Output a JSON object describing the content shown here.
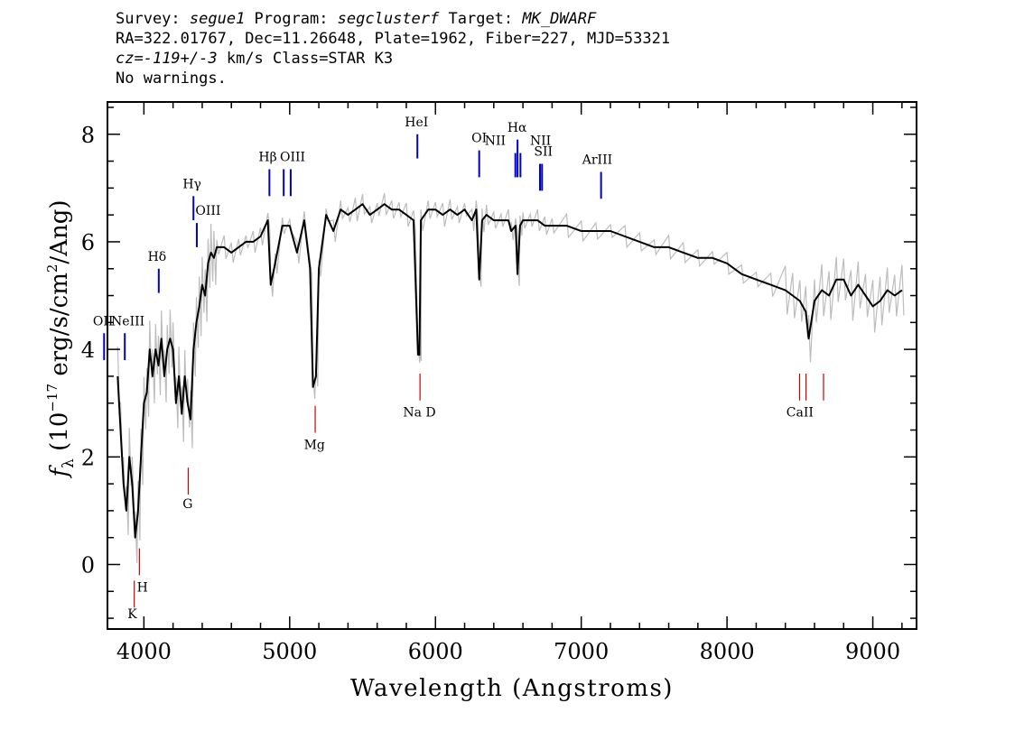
{
  "header": {
    "line1": {
      "survey_label": "Survey: ",
      "survey": "segue1",
      "program_label": " Program: ",
      "program": "segclusterf",
      "target_label": " Target: ",
      "target": "MK_DWARF"
    },
    "line2": "RA=322.01767, Dec=11.26648, Plate=1962, Fiber=227, MJD=53321",
    "line3": {
      "cz_label": "cz=",
      "cz": "-119+/-3",
      "rest": " km/s Class=STAR K3"
    },
    "line4": "No warnings."
  },
  "chart_data": {
    "type": "line",
    "title": "",
    "xlabel": "Wavelength (Angstroms)",
    "ylabel": "f_λ (10^-17 erg/s/cm^2/Ang)",
    "ylabel_parts": {
      "f": "f",
      "lambda": "λ",
      "open": " (10",
      "exp": "−17",
      "mid": " erg/s/cm",
      "sq": "2",
      "close": "/Ang)"
    },
    "xlim": [
      3750,
      9300
    ],
    "ylim": [
      -1.2,
      8.6
    ],
    "xticks": [
      4000,
      5000,
      6000,
      7000,
      8000,
      9000
    ],
    "xtick_labels": [
      "4000",
      "5000",
      "6000",
      "7000",
      "8000",
      "9000"
    ],
    "yticks": [
      0,
      2,
      4,
      6,
      8
    ],
    "ytick_labels": [
      "0",
      "2",
      "4",
      "6",
      "8"
    ],
    "grid": false,
    "series": [
      {
        "role": "flux",
        "color": "#000000",
        "x": [
          3820,
          3840,
          3860,
          3880,
          3900,
          3920,
          3940,
          3960,
          3980,
          4000,
          4020,
          4040,
          4060,
          4080,
          4100,
          4120,
          4140,
          4160,
          4180,
          4200,
          4220,
          4240,
          4260,
          4280,
          4300,
          4320,
          4340,
          4360,
          4380,
          4400,
          4420,
          4440,
          4460,
          4480,
          4500,
          4550,
          4600,
          4650,
          4700,
          4750,
          4800,
          4850,
          4870,
          4900,
          4950,
          5000,
          5050,
          5100,
          5140,
          5160,
          5180,
          5200,
          5250,
          5300,
          5350,
          5400,
          5450,
          5500,
          5550,
          5600,
          5650,
          5700,
          5750,
          5800,
          5850,
          5880,
          5890,
          5900,
          5950,
          6000,
          6050,
          6100,
          6150,
          6200,
          6250,
          6280,
          6300,
          6320,
          6350,
          6400,
          6450,
          6500,
          6520,
          6550,
          6563,
          6580,
          6600,
          6650,
          6700,
          6750,
          6800,
          6900,
          7000,
          7100,
          7200,
          7300,
          7400,
          7500,
          7600,
          7700,
          7800,
          7900,
          8000,
          8100,
          8200,
          8300,
          8400,
          8450,
          8500,
          8540,
          8560,
          8600,
          8650,
          8700,
          8750,
          8800,
          8850,
          8900,
          8950,
          9000,
          9050,
          9100,
          9150,
          9200
        ],
        "y": [
          3.5,
          2.5,
          1.5,
          1.0,
          2.0,
          1.5,
          0.5,
          1.0,
          2.0,
          3.0,
          3.2,
          4.0,
          3.5,
          4.0,
          3.7,
          4.2,
          3.5,
          4.0,
          4.2,
          4.0,
          3.0,
          3.5,
          2.8,
          3.5,
          3.0,
          2.7,
          4.0,
          4.5,
          4.8,
          5.2,
          5.0,
          5.6,
          5.8,
          5.7,
          5.9,
          5.9,
          5.8,
          5.9,
          6.0,
          6.0,
          6.1,
          6.4,
          5.2,
          5.6,
          6.3,
          6.3,
          5.8,
          6.4,
          5.5,
          3.3,
          3.5,
          5.5,
          6.5,
          6.2,
          6.6,
          6.5,
          6.6,
          6.7,
          6.5,
          6.6,
          6.7,
          6.6,
          6.6,
          6.5,
          6.4,
          3.9,
          3.9,
          6.4,
          6.6,
          6.6,
          6.5,
          6.6,
          6.5,
          6.6,
          6.4,
          6.6,
          5.3,
          6.4,
          6.5,
          6.4,
          6.4,
          6.4,
          6.2,
          6.3,
          5.4,
          6.3,
          6.4,
          6.4,
          6.4,
          6.3,
          6.3,
          6.3,
          6.2,
          6.2,
          6.2,
          6.1,
          6.0,
          5.9,
          5.9,
          5.8,
          5.7,
          5.7,
          5.6,
          5.4,
          5.3,
          5.2,
          5.1,
          5.0,
          4.9,
          4.7,
          4.2,
          4.9,
          5.1,
          5.0,
          5.3,
          5.3,
          5.0,
          5.2,
          5.0,
          4.8,
          4.9,
          5.1,
          5.0,
          5.1
        ]
      }
    ],
    "line_markers": {
      "emission_color": "#0000cc",
      "absorption_color": "#cc0000",
      "emission": [
        {
          "label": "OII",
          "wavelength": 3727,
          "y_top": 4.3,
          "y_bottom": 3.8
        },
        {
          "label": "NeIII",
          "wavelength": 3869,
          "y_top": 4.3,
          "y_bottom": 3.8
        },
        {
          "label": "Hδ",
          "wavelength": 4102,
          "y_top": 5.5,
          "y_bottom": 5.05
        },
        {
          "label": "Hγ",
          "wavelength": 4340,
          "y_top": 6.85,
          "y_bottom": 6.4
        },
        {
          "label": "OIII",
          "wavelength": 4363,
          "y_top": 6.35,
          "y_bottom": 5.9
        },
        {
          "label": "Hβ",
          "wavelength": 4861,
          "y_top": 7.35,
          "y_bottom": 6.85
        },
        {
          "label": "OIII",
          "wavelength": 4959,
          "y_top": 7.35,
          "y_bottom": 6.85
        },
        {
          "label": "OIII",
          "wavelength": 5007,
          "y_top": 7.35,
          "y_bottom": 6.85
        },
        {
          "label": "HeI",
          "wavelength": 5876,
          "y_top": 8.0,
          "y_bottom": 7.55
        },
        {
          "label": "OI",
          "wavelength": 6300,
          "y_top": 7.7,
          "y_bottom": 7.2
        },
        {
          "label": "NII",
          "wavelength": 6548,
          "y_top": 7.65,
          "y_bottom": 7.2
        },
        {
          "label": "Hα",
          "wavelength": 6563,
          "y_top": 7.9,
          "y_bottom": 7.2
        },
        {
          "label": "NII",
          "wavelength": 6583,
          "y_top": 7.65,
          "y_bottom": 7.2
        },
        {
          "label": "SII",
          "wavelength": 6717,
          "y_top": 7.45,
          "y_bottom": 6.95
        },
        {
          "label": "SII",
          "wavelength": 6731,
          "y_top": 7.45,
          "y_bottom": 6.95
        },
        {
          "label": "ArIII",
          "wavelength": 7136,
          "y_top": 7.3,
          "y_bottom": 6.8
        }
      ],
      "absorption": [
        {
          "label": "K",
          "wavelength": 3934,
          "y_top": -0.3,
          "y_bottom": -0.8
        },
        {
          "label": "H",
          "wavelength": 3969,
          "y_top": 0.3,
          "y_bottom": -0.2
        },
        {
          "label": "G",
          "wavelength": 4304,
          "y_top": 1.8,
          "y_bottom": 1.3
        },
        {
          "label": "Mg",
          "wavelength": 5175,
          "y_top": 2.95,
          "y_bottom": 2.45
        },
        {
          "label": "Na D",
          "wavelength": 5894,
          "y_top": 3.55,
          "y_bottom": 3.05
        },
        {
          "label": "CaII",
          "wavelength": 8498,
          "y_top": 3.55,
          "y_bottom": 3.05
        },
        {
          "label": "CaII",
          "wavelength": 8542,
          "y_top": 3.55,
          "y_bottom": 3.05
        },
        {
          "label": "CaII",
          "wavelength": 8662,
          "y_top": 3.55,
          "y_bottom": 3.05
        }
      ]
    },
    "marker_labels": [
      {
        "text": "OII",
        "x": 3720,
        "y": 4.45,
        "anchor": "middle",
        "kind": "emission"
      },
      {
        "text": "NeIII",
        "x": 3890,
        "y": 4.45,
        "anchor": "middle",
        "kind": "emission"
      },
      {
        "text": "Hδ",
        "x": 4090,
        "y": 5.65,
        "anchor": "middle",
        "kind": "emission"
      },
      {
        "text": "Hγ",
        "x": 4330,
        "y": 7.0,
        "anchor": "middle",
        "kind": "emission"
      },
      {
        "text": "OIII",
        "x": 4440,
        "y": 6.5,
        "anchor": "middle",
        "kind": "emission"
      },
      {
        "text": "Hβ",
        "x": 4850,
        "y": 7.5,
        "anchor": "middle",
        "kind": "emission"
      },
      {
        "text": "OIII",
        "x": 5020,
        "y": 7.5,
        "anchor": "middle",
        "kind": "emission"
      },
      {
        "text": "HeI",
        "x": 5870,
        "y": 8.15,
        "anchor": "middle",
        "kind": "emission"
      },
      {
        "text": "OI",
        "x": 6300,
        "y": 7.85,
        "anchor": "middle",
        "kind": "emission"
      },
      {
        "text": "NII",
        "x": 6410,
        "y": 7.8,
        "anchor": "middle",
        "kind": "emission"
      },
      {
        "text": "Hα",
        "x": 6560,
        "y": 8.05,
        "anchor": "middle",
        "kind": "emission"
      },
      {
        "text": "NII",
        "x": 6720,
        "y": 7.8,
        "anchor": "middle",
        "kind": "emission"
      },
      {
        "text": "SII",
        "x": 6740,
        "y": 7.6,
        "anchor": "middle",
        "kind": "emission"
      },
      {
        "text": "ArIII",
        "x": 7110,
        "y": 7.45,
        "anchor": "middle",
        "kind": "emission"
      },
      {
        "text": "K",
        "x": 3920,
        "y": -1.0,
        "anchor": "middle",
        "kind": "absorption"
      },
      {
        "text": "H",
        "x": 3990,
        "y": -0.5,
        "anchor": "middle",
        "kind": "absorption"
      },
      {
        "text": "G",
        "x": 4300,
        "y": 1.05,
        "anchor": "middle",
        "kind": "absorption"
      },
      {
        "text": "Mg",
        "x": 5170,
        "y": 2.15,
        "anchor": "middle",
        "kind": "absorption"
      },
      {
        "text": "Na D",
        "x": 5890,
        "y": 2.75,
        "anchor": "middle",
        "kind": "absorption"
      },
      {
        "text": "CaII",
        "x": 8500,
        "y": 2.75,
        "anchor": "middle",
        "kind": "absorption"
      }
    ]
  }
}
